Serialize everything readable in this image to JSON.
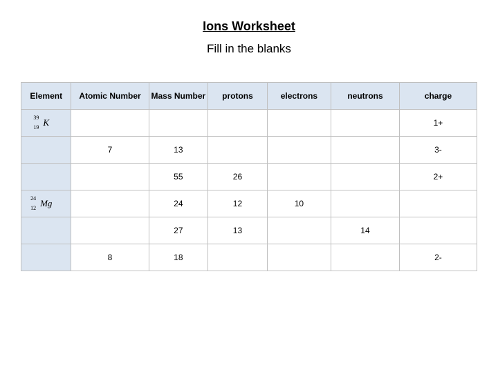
{
  "title": "Ions Worksheet",
  "subtitle": "Fill in the blanks",
  "columns": [
    "Element",
    "Atomic Number",
    "Mass Number",
    "protons",
    "electrons",
    "neutrons",
    "charge"
  ],
  "rows": [
    {
      "element": {
        "mass": "39",
        "atomic": "19",
        "symbol": "K"
      },
      "atomic_number": "",
      "mass_number": "",
      "protons": "",
      "electrons": "",
      "neutrons": "",
      "charge": "1+"
    },
    {
      "element": null,
      "atomic_number": "7",
      "mass_number": "13",
      "protons": "",
      "electrons": "",
      "neutrons": "",
      "charge": "3-"
    },
    {
      "element": null,
      "atomic_number": "",
      "mass_number": "55",
      "protons": "26",
      "electrons": "",
      "neutrons": "",
      "charge": "2+"
    },
    {
      "element": {
        "mass": "24",
        "atomic": "12",
        "symbol": "Mg"
      },
      "atomic_number": "",
      "mass_number": "24",
      "protons": "12",
      "electrons": "10",
      "neutrons": "",
      "charge": ""
    },
    {
      "element": null,
      "atomic_number": "",
      "mass_number": "27",
      "protons": "13",
      "electrons": "",
      "neutrons": "14",
      "charge": ""
    },
    {
      "element": null,
      "atomic_number": "8",
      "mass_number": "18",
      "protons": "",
      "electrons": "",
      "neutrons": "",
      "charge": "2-"
    }
  ],
  "colors": {
    "header_bg": "#dbe5f1",
    "element_col_bg": "#dbe5f1",
    "border": "#bfbfbf",
    "text": "#000000",
    "background": "#ffffff"
  },
  "layout": {
    "col_widths_pct": [
      11,
      17,
      13,
      13,
      14,
      15,
      17
    ]
  }
}
